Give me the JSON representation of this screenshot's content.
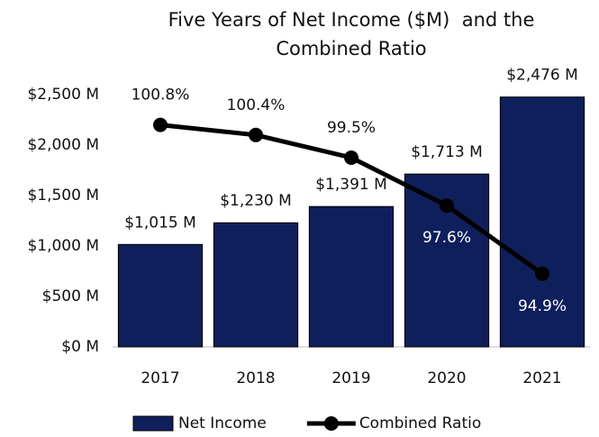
{
  "chart_data": {
    "type": "bar",
    "title": "Five Years of Net Income ($M)  and the Combined Ratio",
    "categories": [
      "2017",
      "2018",
      "2019",
      "2020",
      "2021"
    ],
    "series": [
      {
        "name": "Net Income",
        "type": "bar",
        "color": "#0f1f5c",
        "values": [
          1015,
          1230,
          1391,
          1713,
          2476
        ],
        "value_labels": [
          "$1,015 M",
          "$1,230 M",
          "$1,391 M",
          "$1,713 M",
          "$2,476 M"
        ]
      },
      {
        "name": "Combined Ratio",
        "type": "line",
        "color": "#000000",
        "axis": "y2",
        "values": [
          100.8,
          100.4,
          99.5,
          97.6,
          94.9
        ],
        "value_labels": [
          "100.8%",
          "100.4%",
          "99.5%",
          "97.6%",
          "94.9%"
        ]
      }
    ],
    "ylim": [
      0,
      2500
    ],
    "yticks": [
      {
        "value": 0,
        "label": "$0 M"
      },
      {
        "value": 500,
        "label": "$500 M"
      },
      {
        "value": 1000,
        "label": "$1,000 M"
      },
      {
        "value": 1500,
        "label": "$1,500 M"
      },
      {
        "value": 2000,
        "label": "$2,000 M"
      },
      {
        "value": 2500,
        "label": "$2,500 M"
      }
    ],
    "y2lim": [
      92,
      102
    ],
    "legend": "bottom"
  }
}
